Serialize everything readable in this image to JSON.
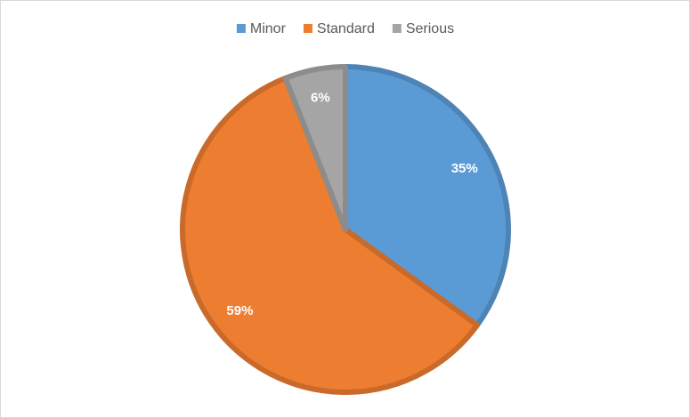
{
  "chart_data": {
    "type": "pie",
    "categories": [
      "Minor",
      "Standard",
      "Serious"
    ],
    "values": [
      35,
      59,
      6
    ],
    "value_labels": [
      "35%",
      "59%",
      "6%"
    ],
    "colors": [
      "#5b9bd5",
      "#ed7d31",
      "#a5a5a5"
    ],
    "legend": "top"
  }
}
